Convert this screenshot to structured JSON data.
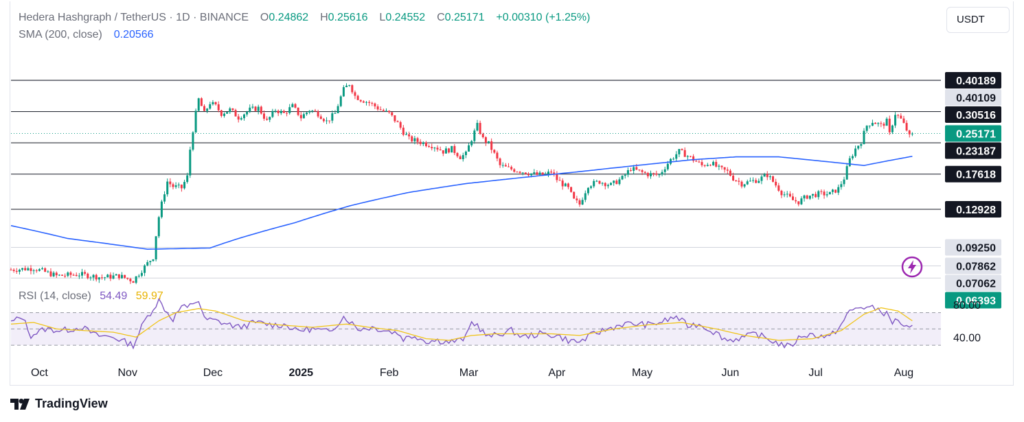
{
  "header": {
    "symbol": "Hedera Hashgraph / TetherUS",
    "interval": "1D",
    "exchange": "BINANCE",
    "open_label": "O",
    "open": "0.24862",
    "high_label": "H",
    "high": "0.25616",
    "low_label": "L",
    "low": "0.24552",
    "close_label": "C",
    "close": "0.25171",
    "change": "+0.00310 (+1.25%)"
  },
  "sma": {
    "label": "SMA (200, close)",
    "value": "0.20566"
  },
  "rsi": {
    "label": "RSI (14, close)",
    "value": "54.49",
    "ma_value": "59.97"
  },
  "currency_button": "USDT",
  "brand": "TradingView",
  "colors": {
    "up": "#089981",
    "down": "#f23645",
    "sma": "#2962ff",
    "rsi": "#7e57c2",
    "rsi_ma": "#f0c419",
    "level_line": "#131722",
    "label_dark": "#131722",
    "label_grey": "#e0e3eb",
    "label_green": "#089981"
  },
  "chart_data": [
    {
      "type": "candlestick",
      "title": "Hedera Hashgraph / TetherUS · 1D · BINANCE",
      "x_labels": [
        "Oct",
        "Nov",
        "Dec",
        "2025",
        "Feb",
        "Mar",
        "Apr",
        "May",
        "Jun",
        "Jul",
        "Aug"
      ],
      "x_bold_labels": [
        "2025"
      ],
      "ylim": [
        0.05,
        0.44
      ],
      "horizontal_levels": [
        0.40189,
        0.30516,
        0.23187,
        0.17618,
        0.12928
      ],
      "grey_levels": [
        0.40109,
        0.0925,
        0.07862,
        0.07062
      ],
      "price_labels": [
        {
          "text": "0.40189",
          "value": 0.40189,
          "style": "dark"
        },
        {
          "text": "0.40109",
          "value": 0.40109,
          "style": "grey"
        },
        {
          "text": "0.30516",
          "value": 0.30516,
          "style": "dark"
        },
        {
          "text": "0.25171",
          "value": 0.25171,
          "style": "green"
        },
        {
          "text": "0.23187",
          "value": 0.23187,
          "style": "dark"
        },
        {
          "text": "0.17618",
          "value": 0.17618,
          "style": "dark"
        },
        {
          "text": "0.12928",
          "value": 0.12928,
          "style": "dark"
        },
        {
          "text": "0.09250",
          "value": 0.0925,
          "style": "grey"
        },
        {
          "text": "0.07862",
          "value": 0.07862,
          "style": "grey"
        },
        {
          "text": "0.07062",
          "value": 0.07062,
          "style": "grey"
        },
        {
          "text": "0.06393",
          "value": 0.06393,
          "style": "green"
        }
      ],
      "last_close": 0.25171,
      "close_anchors": [
        [
          0,
          0.076
        ],
        [
          8,
          0.077
        ],
        [
          16,
          0.072
        ],
        [
          24,
          0.073
        ],
        [
          32,
          0.071
        ],
        [
          38,
          0.072
        ],
        [
          43,
          0.069
        ],
        [
          47,
          0.078
        ],
        [
          50,
          0.085
        ],
        [
          52,
          0.121
        ],
        [
          55,
          0.165
        ],
        [
          57,
          0.158
        ],
        [
          60,
          0.156
        ],
        [
          62,
          0.172
        ],
        [
          63,
          0.219
        ],
        [
          64,
          0.26
        ],
        [
          66,
          0.34
        ],
        [
          68,
          0.3
        ],
        [
          70,
          0.33
        ],
        [
          72,
          0.32
        ],
        [
          74,
          0.3
        ],
        [
          77,
          0.31
        ],
        [
          80,
          0.29
        ],
        [
          84,
          0.31
        ],
        [
          87,
          0.315
        ],
        [
          90,
          0.28
        ],
        [
          93,
          0.31
        ],
        [
          96,
          0.3
        ],
        [
          99,
          0.32
        ],
        [
          102,
          0.29
        ],
        [
          105,
          0.31
        ],
        [
          108,
          0.3
        ],
        [
          111,
          0.28
        ],
        [
          114,
          0.3
        ],
        [
          117,
          0.37
        ],
        [
          119,
          0.39
        ],
        [
          121,
          0.35
        ],
        [
          123,
          0.34
        ],
        [
          126,
          0.33
        ],
        [
          128,
          0.32
        ],
        [
          130,
          0.31
        ],
        [
          133,
          0.3
        ],
        [
          136,
          0.275
        ],
        [
          138,
          0.255
        ],
        [
          140,
          0.24
        ],
        [
          143,
          0.235
        ],
        [
          146,
          0.23
        ],
        [
          149,
          0.225
        ],
        [
          152,
          0.215
        ],
        [
          155,
          0.22
        ],
        [
          158,
          0.205
        ],
        [
          160,
          0.21
        ],
        [
          162,
          0.24
        ],
        [
          164,
          0.27
        ],
        [
          166,
          0.24
        ],
        [
          168,
          0.23
        ],
        [
          170,
          0.21
        ],
        [
          172,
          0.19
        ],
        [
          175,
          0.185
        ],
        [
          180,
          0.18
        ],
        [
          185,
          0.175
        ],
        [
          188,
          0.175
        ],
        [
          190,
          0.18
        ],
        [
          192,
          0.168
        ],
        [
          196,
          0.155
        ],
        [
          198,
          0.14
        ],
        [
          200,
          0.135
        ],
        [
          203,
          0.16
        ],
        [
          207,
          0.165
        ],
        [
          211,
          0.16
        ],
        [
          215,
          0.17
        ],
        [
          218,
          0.185
        ],
        [
          221,
          0.18
        ],
        [
          224,
          0.176
        ],
        [
          228,
          0.175
        ],
        [
          232,
          0.2
        ],
        [
          235,
          0.215
        ],
        [
          237,
          0.21
        ],
        [
          240,
          0.2
        ],
        [
          243,
          0.19
        ],
        [
          246,
          0.195
        ],
        [
          249,
          0.185
        ],
        [
          252,
          0.18
        ],
        [
          254,
          0.17
        ],
        [
          257,
          0.162
        ],
        [
          260,
          0.165
        ],
        [
          263,
          0.168
        ],
        [
          266,
          0.175
        ],
        [
          269,
          0.16
        ],
        [
          271,
          0.15
        ],
        [
          273,
          0.145
        ],
        [
          275,
          0.14
        ],
        [
          277,
          0.138
        ],
        [
          280,
          0.145
        ],
        [
          284,
          0.148
        ],
        [
          288,
          0.148
        ],
        [
          291,
          0.155
        ],
        [
          293,
          0.17
        ],
        [
          295,
          0.2
        ],
        [
          297,
          0.22
        ],
        [
          299,
          0.235
        ],
        [
          301,
          0.27
        ],
        [
          303,
          0.28
        ],
        [
          306,
          0.27
        ],
        [
          308,
          0.28
        ],
        [
          309,
          0.25
        ],
        [
          311,
          0.3
        ],
        [
          313,
          0.285
        ],
        [
          315,
          0.26
        ],
        [
          316,
          0.245
        ],
        [
          317,
          0.2517
        ]
      ],
      "sma200_anchors": [
        [
          0,
          0.112
        ],
        [
          20,
          0.1
        ],
        [
          48,
          0.091
        ],
        [
          70,
          0.092
        ],
        [
          80,
          0.1
        ],
        [
          100,
          0.115
        ],
        [
          120,
          0.134
        ],
        [
          140,
          0.15
        ],
        [
          160,
          0.162
        ],
        [
          180,
          0.171
        ],
        [
          200,
          0.18
        ],
        [
          220,
          0.19
        ],
        [
          240,
          0.2
        ],
        [
          255,
          0.205
        ],
        [
          270,
          0.205
        ],
        [
          280,
          0.2
        ],
        [
          290,
          0.195
        ],
        [
          300,
          0.19
        ],
        [
          317,
          0.206
        ]
      ],
      "sma200_last": 0.20566
    },
    {
      "type": "line",
      "title": "RSI (14, close)",
      "ylim": [
        20,
        100
      ],
      "y_tick_labels": [
        "80.00",
        "40.00"
      ],
      "y_ticks": [
        80,
        40
      ],
      "bands": [
        70,
        50,
        30
      ],
      "series": [
        {
          "name": "RSI",
          "color": "#7e57c2",
          "last": 54.49,
          "anchors": [
            [
              0,
              58
            ],
            [
              4,
              65
            ],
            [
              7,
              42
            ],
            [
              12,
              50
            ],
            [
              18,
              48
            ],
            [
              25,
              52
            ],
            [
              30,
              42
            ],
            [
              36,
              40
            ],
            [
              43,
              30
            ],
            [
              47,
              60
            ],
            [
              50,
              75
            ],
            [
              52,
              85
            ],
            [
              55,
              70
            ],
            [
              57,
              62
            ],
            [
              60,
              78
            ],
            [
              62,
              75
            ],
            [
              64,
              82
            ],
            [
              66,
              85
            ],
            [
              68,
              62
            ],
            [
              72,
              60
            ],
            [
              76,
              56
            ],
            [
              80,
              52
            ],
            [
              86,
              58
            ],
            [
              92,
              55
            ],
            [
              97,
              55
            ],
            [
              100,
              48
            ],
            [
              106,
              50
            ],
            [
              112,
              46
            ],
            [
              117,
              65
            ],
            [
              119,
              60
            ],
            [
              122,
              50
            ],
            [
              127,
              52
            ],
            [
              132,
              48
            ],
            [
              136,
              45
            ],
            [
              138,
              38
            ],
            [
              142,
              42
            ],
            [
              146,
              35
            ],
            [
              150,
              36
            ],
            [
              154,
              34
            ],
            [
              158,
              36
            ],
            [
              160,
              40
            ],
            [
              162,
              58
            ],
            [
              164,
              55
            ],
            [
              166,
              46
            ],
            [
              168,
              40
            ],
            [
              172,
              44
            ],
            [
              176,
              48
            ],
            [
              180,
              40
            ],
            [
              186,
              44
            ],
            [
              192,
              42
            ],
            [
              196,
              36
            ],
            [
              200,
              34
            ],
            [
              205,
              44
            ],
            [
              210,
              50
            ],
            [
              215,
              56
            ],
            [
              220,
              56
            ],
            [
              225,
              55
            ],
            [
              230,
              60
            ],
            [
              234,
              65
            ],
            [
              238,
              54
            ],
            [
              242,
              56
            ],
            [
              248,
              45
            ],
            [
              252,
              36
            ],
            [
              258,
              40
            ],
            [
              262,
              44
            ],
            [
              266,
              38
            ],
            [
              270,
              32
            ],
            [
              274,
              28
            ],
            [
              278,
              42
            ],
            [
              282,
              43
            ],
            [
              288,
              40
            ],
            [
              292,
              55
            ],
            [
              295,
              72
            ],
            [
              299,
              77
            ],
            [
              302,
              76
            ],
            [
              305,
              74
            ],
            [
              308,
              68
            ],
            [
              310,
              58
            ],
            [
              312,
              62
            ],
            [
              314,
              52
            ],
            [
              316,
              50
            ],
            [
              317,
              54.49
            ]
          ]
        },
        {
          "name": "RSI-based MA",
          "color": "#f0c419",
          "last": 59.97,
          "anchors": [
            [
              0,
              56
            ],
            [
              8,
              58
            ],
            [
              16,
              50
            ],
            [
              26,
              48
            ],
            [
              36,
              46
            ],
            [
              44,
              40
            ],
            [
              52,
              60
            ],
            [
              58,
              70
            ],
            [
              66,
              75
            ],
            [
              72,
              72
            ],
            [
              82,
              60
            ],
            [
              94,
              55
            ],
            [
              106,
              52
            ],
            [
              118,
              56
            ],
            [
              126,
              52
            ],
            [
              136,
              48
            ],
            [
              146,
              38
            ],
            [
              154,
              36
            ],
            [
              162,
              42
            ],
            [
              170,
              44
            ],
            [
              180,
              44
            ],
            [
              190,
              44
            ],
            [
              200,
              42
            ],
            [
              212,
              50
            ],
            [
              224,
              55
            ],
            [
              236,
              58
            ],
            [
              248,
              50
            ],
            [
              258,
              42
            ],
            [
              270,
              36
            ],
            [
              282,
              38
            ],
            [
              292,
              48
            ],
            [
              300,
              68
            ],
            [
              306,
              76
            ],
            [
              312,
              72
            ],
            [
              317,
              59.97
            ]
          ]
        }
      ]
    }
  ]
}
